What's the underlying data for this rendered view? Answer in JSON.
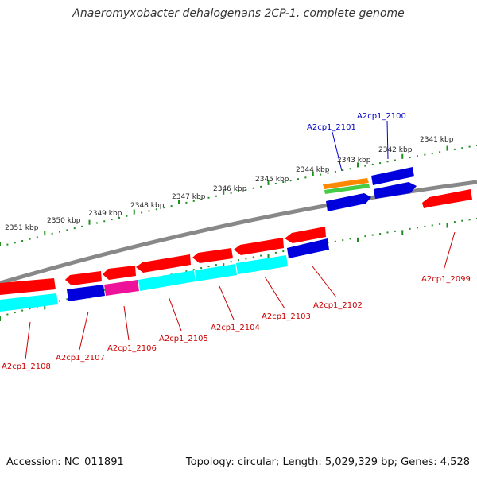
{
  "title": "Anaeromyxobacter dehalogenans 2CP-1, complete genome",
  "footer": {
    "accession": "Accession: NC_011891",
    "summary": "Topology: circular; Length: 5,029,329 bp; Genes: 4,528"
  },
  "colors": {
    "backbone": "#888888",
    "tick": "#1f8f1f",
    "red": "#ff0000",
    "blue": "#0000dd",
    "cyan": "#00ffff",
    "magenta": "#ee1199",
    "orange": "#ff8800",
    "green": "#44cc44",
    "label_red": "#cc0000",
    "label_blue": "#0000cc"
  },
  "kbp_labels": [
    "2341 kbp",
    "2342 kbp",
    "2343 kbp",
    "2344 kbp",
    "2345 kbp",
    "2346 kbp",
    "2347 kbp",
    "2348 kbp",
    "2349 kbp",
    "2350 kbp",
    "2351 kbp"
  ],
  "gene_labels": [
    "A2cp1_2100",
    "A2cp1_2101",
    "A2cp1_2099",
    "A2cp1_2102",
    "A2cp1_2103",
    "A2cp1_2104",
    "A2cp1_2105",
    "A2cp1_2106",
    "A2cp1_2107",
    "A2cp1_2108"
  ]
}
